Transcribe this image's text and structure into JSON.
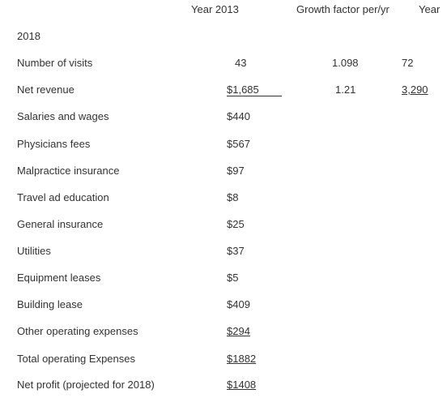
{
  "header": {
    "year2013": "Year 2013",
    "growth": "Growth factor per/yr",
    "year2018_top": "Year",
    "year2018_wrap": "2018"
  },
  "rows": [
    {
      "label": "Number of visits",
      "y2013": "43",
      "growth": "1.098",
      "y2018": "72"
    },
    {
      "label": "Net revenue",
      "y2013": "$1,685",
      "growth": "1.21",
      "y2018": "3,290"
    },
    {
      "label": "Salaries and wages",
      "y2013": "$440"
    },
    {
      "label": "Physicians fees",
      "y2013": "$567"
    },
    {
      "label": "Malpractice insurance",
      "y2013": "$97"
    },
    {
      "label": "Travel ad education",
      "y2013": "$8"
    },
    {
      "label": "General insurance",
      "y2013": "$25"
    },
    {
      "label": "Utilities",
      "y2013": "$37"
    },
    {
      "label": "Equipment leases",
      "y2013": "$5"
    },
    {
      "label": "Building lease",
      "y2013": "$409"
    },
    {
      "label": "Other operating expenses",
      "y2013": "$294"
    },
    {
      "label": "Total operating Expenses",
      "y2013": "$1882"
    },
    {
      "label": "Net profit (projected for 2018)",
      "y2013": "$1408"
    }
  ]
}
